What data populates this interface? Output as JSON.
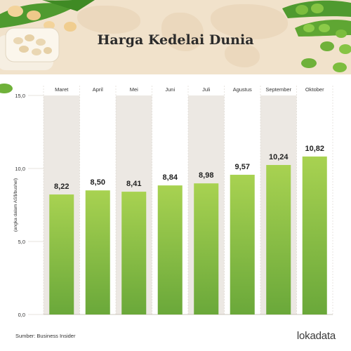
{
  "header": {
    "title": "Harga Kedelai Dunia"
  },
  "footer": {
    "source": "Sumber: Business Insider",
    "logo": "lokadata"
  },
  "colors": {
    "bar_top": "#a8d251",
    "bar_bottom": "#6aa83a",
    "shade": "#ece8e3",
    "header_bg": "#f1e2cb"
  },
  "chart_data": {
    "type": "bar",
    "title": "Harga Kedelai Dunia",
    "categories": [
      "Maret",
      "April",
      "Mei",
      "Juni",
      "Juli",
      "Agustus",
      "September",
      "Oktober"
    ],
    "values": [
      8.22,
      8.5,
      8.41,
      8.84,
      8.98,
      9.57,
      10.24,
      10.82
    ],
    "value_labels": [
      "8,22",
      "8,50",
      "8,41",
      "8,84",
      "8,98",
      "9,57",
      "10,24",
      "10,82"
    ],
    "ylabel": "(angka dalam AS$/bushel)",
    "xlabel": "",
    "ylim": [
      0,
      15
    ],
    "yticks": [
      0,
      5,
      10,
      15
    ],
    "ytick_labels": [
      "0,0",
      "5,0",
      "10,0",
      "15,0"
    ],
    "shaded_columns": [
      0,
      2,
      4,
      6
    ],
    "category_position": "top",
    "grid": false,
    "legend": "none"
  }
}
